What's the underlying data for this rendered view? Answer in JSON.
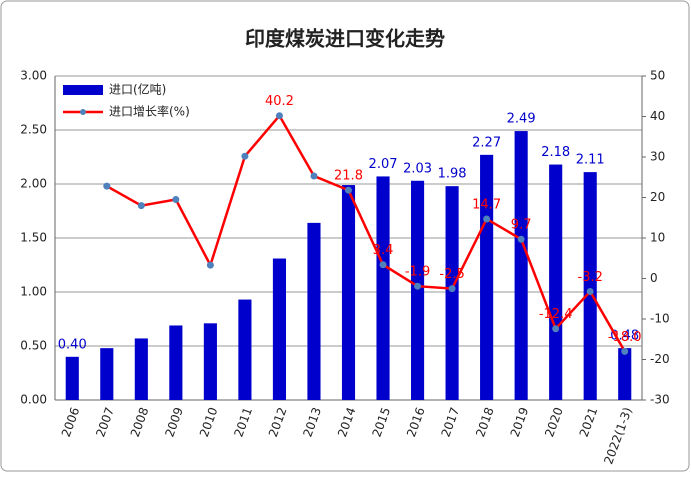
{
  "chart_data": {
    "type": "bar-line",
    "title": "印度煤炭进口变化走势",
    "categories": [
      "2006",
      "2007",
      "2008",
      "2009",
      "2010",
      "2011",
      "2012",
      "2013",
      "2014",
      "2015",
      "2016",
      "2017",
      "2018",
      "2019",
      "2020",
      "2021",
      "2022(1-3)"
    ],
    "series": [
      {
        "name": "进口(亿吨)",
        "type": "bar",
        "color": "#0000cc",
        "values": [
          0.4,
          0.48,
          0.57,
          0.69,
          0.71,
          0.93,
          1.31,
          1.64,
          1.99,
          2.07,
          2.03,
          1.98,
          2.27,
          2.49,
          2.18,
          2.11,
          0.48
        ],
        "value_labels": [
          "0.40",
          null,
          null,
          null,
          null,
          null,
          null,
          null,
          null,
          "2.07",
          "2.03",
          "1.98",
          "2.27",
          "2.49",
          "2.18",
          "2.11",
          "0.48"
        ]
      },
      {
        "name": "进口增长率(%)",
        "type": "line",
        "axis": "y2",
        "color": "#ff0000",
        "marker_color": "#4f81bd",
        "values": [
          null,
          22.8,
          18,
          19.5,
          3.3,
          30.2,
          40.2,
          25.3,
          21.8,
          3.4,
          -1.9,
          -2.5,
          14.7,
          9.7,
          -12.4,
          -3.2,
          -18.0
        ],
        "value_labels": [
          null,
          null,
          null,
          null,
          null,
          null,
          "40.2",
          null,
          "21.8",
          "3.4",
          "-1.9",
          "-2.5",
          "14.7",
          "9.7",
          "-12.4",
          "-3.2",
          "-18.0"
        ]
      }
    ],
    "ylim": [
      0,
      3
    ],
    "yticks": [
      {
        "value": 0,
        "label": "0.00"
      },
      {
        "value": 0.5,
        "label": "0.50"
      },
      {
        "value": 1,
        "label": "1.00"
      },
      {
        "value": 1.5,
        "label": "1.50"
      },
      {
        "value": 2,
        "label": "2.00"
      },
      {
        "value": 2.5,
        "label": "2.50"
      },
      {
        "value": 3,
        "label": "3.00"
      }
    ],
    "y2lim": [
      -30,
      50
    ],
    "y2ticks": [
      -30,
      -20,
      -10,
      0,
      10,
      20,
      30,
      40,
      50
    ],
    "grid": true,
    "legend": "top-left"
  }
}
